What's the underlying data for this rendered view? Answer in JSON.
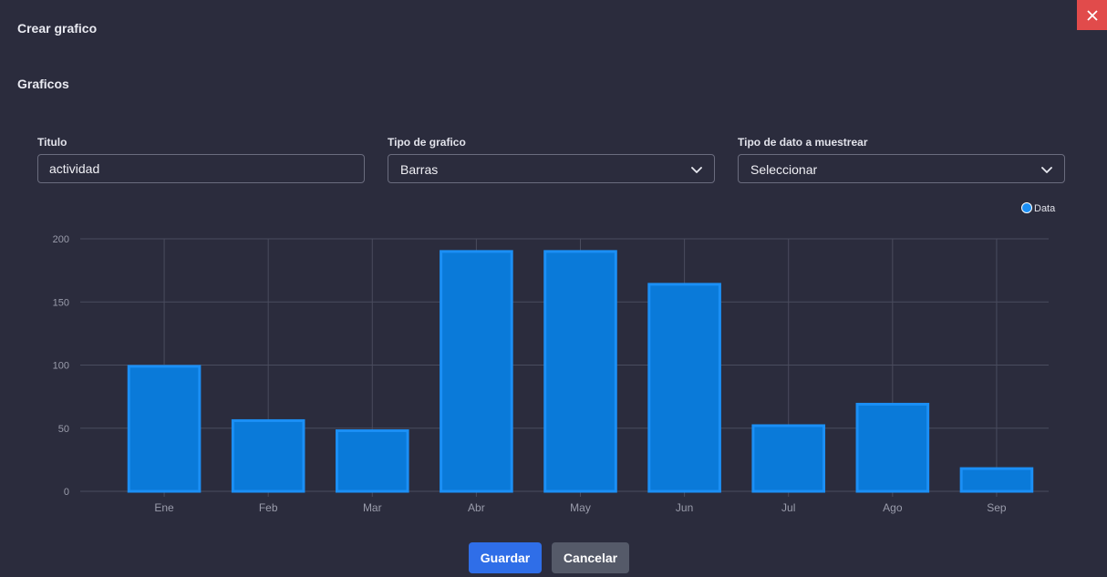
{
  "modal": {
    "title": "Crear grafico",
    "close_icon": "close-icon",
    "section_title": "Graficos"
  },
  "form": {
    "title_label": "Titulo",
    "title_value": "actividad",
    "type_label": "Tipo de grafico",
    "type_value": "Barras",
    "data_label": "Tipo de dato a muestrear",
    "data_value": "Seleccionar"
  },
  "colors": {
    "bar_fill": "#0a7ad9",
    "bar_stroke": "#1b8ff5",
    "grid": "#4a4c5e",
    "tick_text": "#9a9cab"
  },
  "chart_data": {
    "type": "bar",
    "categories": [
      "Ene",
      "Feb",
      "Mar",
      "Abr",
      "May",
      "Jun",
      "Jul",
      "Ago",
      "Sep"
    ],
    "series": [
      {
        "name": "Data",
        "values": [
          99,
          56,
          48,
          190,
          190,
          164,
          52,
          69,
          18
        ]
      }
    ],
    "ylim": [
      0,
      200
    ],
    "yticks": [
      0,
      50,
      100,
      150,
      200
    ],
    "grid": true,
    "legend_position": "top-right"
  },
  "actions": {
    "save_label": "Guardar",
    "cancel_label": "Cancelar"
  }
}
